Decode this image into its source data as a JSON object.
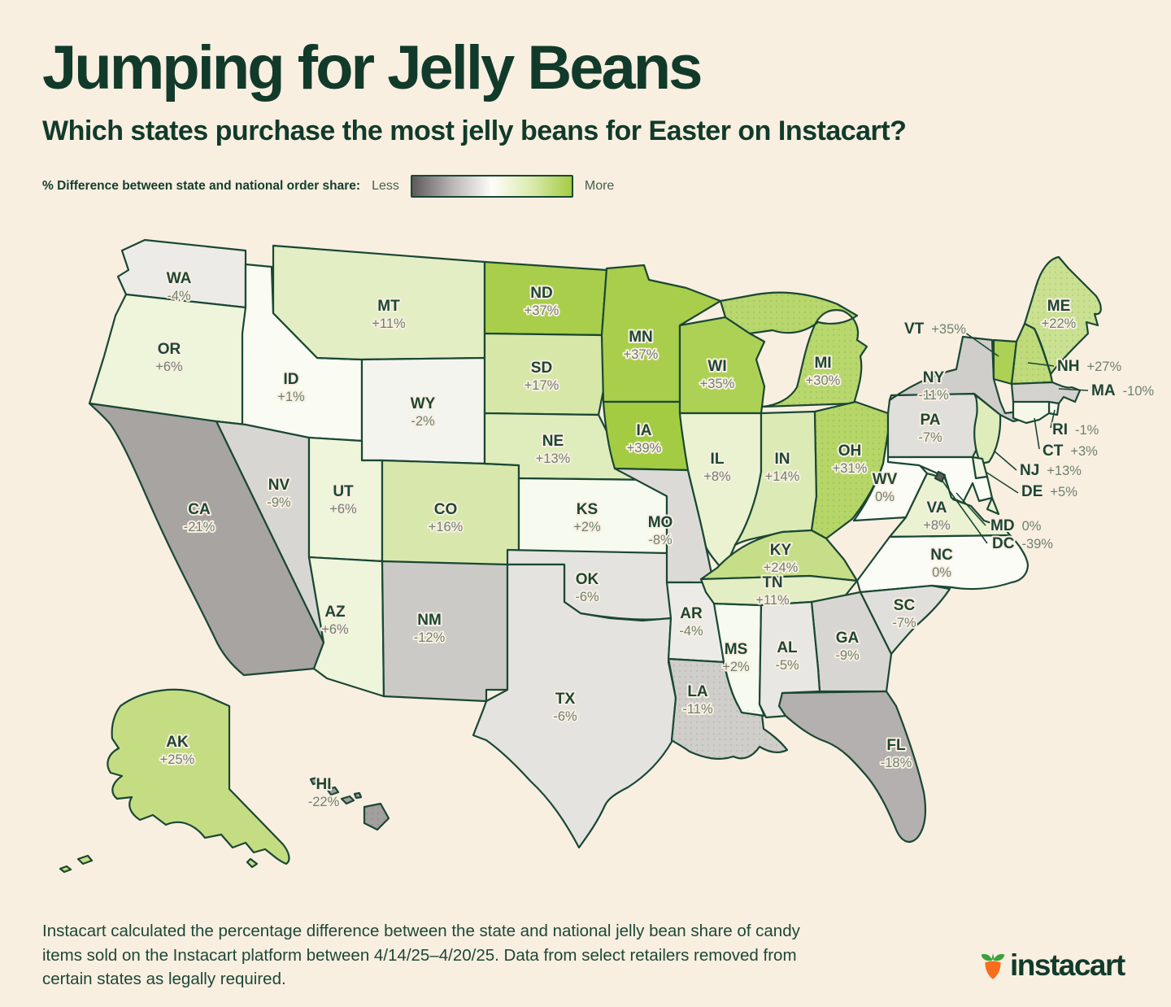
{
  "header": {
    "title": "Jumping for Jelly Beans",
    "subtitle": "Which states purchase the most jelly beans for Easter on Instacart?"
  },
  "legend": {
    "label": "% Difference between state and national order share:",
    "less": "Less",
    "more": "More",
    "gradient_colors": [
      "#5E595B",
      "#BDB9B9",
      "#FDFDF9",
      "#DCEBB0",
      "#A4CC42"
    ]
  },
  "chart_data": {
    "type": "choropleth",
    "title": "Jumping for Jelly Beans",
    "metric": "% difference between state and national jelly bean order share",
    "color_scale": {
      "min": -39,
      "max": 39,
      "negative_color": "#5E585A",
      "zero_color": "#FCFCF7",
      "positive_color": "#A4CC42",
      "border_color": "#1A4733"
    },
    "states": [
      {
        "code": "WA",
        "value": -4,
        "display": "-4%"
      },
      {
        "code": "OR",
        "value": 6,
        "display": "+6%"
      },
      {
        "code": "CA",
        "value": -21,
        "display": "-21%"
      },
      {
        "code": "NV",
        "value": -9,
        "display": "-9%"
      },
      {
        "code": "ID",
        "value": 1,
        "display": "+1%"
      },
      {
        "code": "MT",
        "value": 11,
        "display": "+11%"
      },
      {
        "code": "WY",
        "value": -2,
        "display": "-2%"
      },
      {
        "code": "UT",
        "value": 6,
        "display": "+6%"
      },
      {
        "code": "AZ",
        "value": 6,
        "display": "+6%"
      },
      {
        "code": "CO",
        "value": 16,
        "display": "+16%"
      },
      {
        "code": "NM",
        "value": -12,
        "display": "-12%"
      },
      {
        "code": "ND",
        "value": 37,
        "display": "+37%"
      },
      {
        "code": "SD",
        "value": 17,
        "display": "+17%"
      },
      {
        "code": "NE",
        "value": 13,
        "display": "+13%"
      },
      {
        "code": "KS",
        "value": 2,
        "display": "+2%"
      },
      {
        "code": "OK",
        "value": -6,
        "display": "-6%"
      },
      {
        "code": "TX",
        "value": -6,
        "display": "-6%"
      },
      {
        "code": "MN",
        "value": 37,
        "display": "+37%"
      },
      {
        "code": "IA",
        "value": 39,
        "display": "+39%"
      },
      {
        "code": "MO",
        "value": -8,
        "display": "-8%"
      },
      {
        "code": "AR",
        "value": -4,
        "display": "-4%"
      },
      {
        "code": "LA",
        "value": -11,
        "display": "-11%"
      },
      {
        "code": "WI",
        "value": 35,
        "display": "+35%"
      },
      {
        "code": "IL",
        "value": 8,
        "display": "+8%"
      },
      {
        "code": "MS",
        "value": 2,
        "display": "+2%"
      },
      {
        "code": "MI",
        "value": 30,
        "display": "+30%"
      },
      {
        "code": "IN",
        "value": 14,
        "display": "+14%"
      },
      {
        "code": "OH",
        "value": 31,
        "display": "+31%"
      },
      {
        "code": "KY",
        "value": 24,
        "display": "+24%"
      },
      {
        "code": "TN",
        "value": 11,
        "display": "+11%"
      },
      {
        "code": "AL",
        "value": -5,
        "display": "-5%"
      },
      {
        "code": "GA",
        "value": -9,
        "display": "-9%"
      },
      {
        "code": "SC",
        "value": -7,
        "display": "-7%"
      },
      {
        "code": "NC",
        "value": 0,
        "display": "0%"
      },
      {
        "code": "VA",
        "value": 8,
        "display": "+8%"
      },
      {
        "code": "WV",
        "value": 0,
        "display": "0%"
      },
      {
        "code": "FL",
        "value": -18,
        "display": "-18%"
      },
      {
        "code": "PA",
        "value": -7,
        "display": "-7%"
      },
      {
        "code": "NY",
        "value": -11,
        "display": "-11%"
      },
      {
        "code": "ME",
        "value": 22,
        "display": "+22%"
      },
      {
        "code": "VT",
        "value": 35,
        "display": "+35%"
      },
      {
        "code": "NH",
        "value": 27,
        "display": "+27%"
      },
      {
        "code": "MA",
        "value": -10,
        "display": "-10%"
      },
      {
        "code": "RI",
        "value": -1,
        "display": "-1%"
      },
      {
        "code": "CT",
        "value": 3,
        "display": "+3%"
      },
      {
        "code": "NJ",
        "value": 13,
        "display": "+13%"
      },
      {
        "code": "DE",
        "value": 5,
        "display": "+5%"
      },
      {
        "code": "MD",
        "value": 0,
        "display": "0%"
      },
      {
        "code": "DC",
        "value": -39,
        "display": "-39%"
      },
      {
        "code": "AK",
        "value": 25,
        "display": "+25%"
      },
      {
        "code": "HI",
        "value": -22,
        "display": "-22%"
      }
    ],
    "textured_states": [
      "ME",
      "NH",
      "MI",
      "OH",
      "LA",
      "HI"
    ],
    "callout_states": [
      "VT",
      "NH",
      "MA",
      "RI",
      "CT",
      "NJ",
      "DE",
      "MD",
      "DC"
    ]
  },
  "footer": {
    "note": "Instacart calculated the percentage difference between the state and national jelly bean share of candy items sold on the Instacart platform between 4/14/25–4/20/25. Data from select retailers removed from certain states as legally required.",
    "logo_text": "instacart"
  }
}
